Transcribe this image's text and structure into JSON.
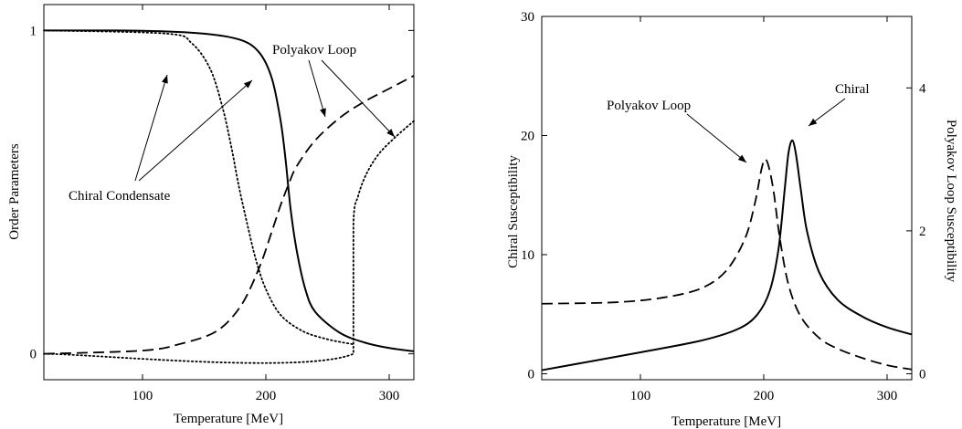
{
  "chart_data": [
    {
      "type": "line",
      "xlabel": "Temperature [MeV]",
      "ylabel": "Order Parameters",
      "xlim": [
        20,
        320
      ],
      "ylim": [
        -0.08,
        1.08
      ],
      "xticks": [
        100,
        200,
        300
      ],
      "yticks": [
        0,
        1
      ],
      "yticklabels": [
        "0",
        "1"
      ],
      "grid": false,
      "series": [
        {
          "style": "solid",
          "x": [
            20,
            100,
            150,
            180,
            195,
            205,
            212,
            216,
            220,
            225,
            232,
            240,
            260,
            280,
            300,
            320
          ],
          "y": [
            1.0,
            0.999,
            0.99,
            0.97,
            0.93,
            0.85,
            0.72,
            0.6,
            0.45,
            0.32,
            0.2,
            0.13,
            0.065,
            0.035,
            0.018,
            0.008
          ]
        },
        {
          "style": "dashed",
          "x": [
            20,
            100,
            130,
            160,
            180,
            195,
            205,
            212,
            218,
            225,
            240,
            260,
            280,
            300,
            320
          ],
          "y": [
            0.0,
            0.01,
            0.03,
            0.07,
            0.15,
            0.27,
            0.38,
            0.46,
            0.52,
            0.58,
            0.66,
            0.73,
            0.78,
            0.82,
            0.86
          ]
        },
        {
          "style": "dotted",
          "x": [
            20,
            120,
            140,
            155,
            165,
            172,
            178,
            185,
            192,
            200,
            212,
            230,
            250,
            270
          ],
          "y": [
            1.0,
            0.99,
            0.96,
            0.88,
            0.76,
            0.64,
            0.52,
            0.4,
            0.29,
            0.2,
            0.12,
            0.07,
            0.045,
            0.03
          ]
        },
        {
          "style": "dotted",
          "x": [
            20,
            271,
            271,
            275,
            282,
            292,
            305,
            320
          ],
          "y": [
            0.0,
            0.0,
            0.4,
            0.49,
            0.56,
            0.62,
            0.67,
            0.72
          ]
        }
      ],
      "annotations": [
        {
          "text": "Polyakov Loop",
          "x": 280,
          "y": 0.955
        },
        {
          "text": "Chiral Condensate",
          "x": 95,
          "y": 0.52
        }
      ]
    },
    {
      "type": "line",
      "xlabel": "Temperature [MeV]",
      "ylabel": "Chiral Susceptibility",
      "y2label": "Polyakov Loop Susceptibility",
      "xlim": [
        20,
        320
      ],
      "ylim": [
        -0.5,
        30
      ],
      "y2lim": [
        -0.0833,
        5.0
      ],
      "xticks": [
        100,
        200,
        300
      ],
      "yticks": [
        0,
        10,
        20,
        30
      ],
      "y2ticks": [
        0,
        2,
        4
      ],
      "grid": false,
      "series": [
        {
          "axis": "left",
          "style": "solid",
          "x": [
            20,
            100,
            150,
            180,
            195,
            205,
            212,
            217,
            220,
            223,
            226,
            230,
            235,
            245,
            260,
            280,
            300,
            320
          ],
          "y": [
            0.3,
            1.8,
            2.8,
            3.8,
            5.0,
            7.0,
            10.5,
            15.5,
            18.5,
            19.6,
            18.5,
            15.5,
            12.0,
            8.5,
            6.2,
            4.8,
            3.9,
            3.3
          ]
        },
        {
          "axis": "right",
          "style": "dashed",
          "x": [
            20,
            80,
            120,
            150,
            170,
            185,
            193,
            198,
            201,
            204,
            208,
            213,
            220,
            230,
            245,
            260,
            280,
            300,
            320
          ],
          "y": [
            0.98,
            1.0,
            1.07,
            1.2,
            1.45,
            1.9,
            2.4,
            2.85,
            3.0,
            2.9,
            2.55,
            1.9,
            1.25,
            0.8,
            0.5,
            0.35,
            0.22,
            0.12,
            0.06
          ]
        }
      ],
      "annotations": [
        {
          "text": "Polyakov Loop",
          "x": 170,
          "y": 24.7
        },
        {
          "text": "Chiral",
          "x": 236,
          "y": 25.6
        }
      ]
    }
  ]
}
